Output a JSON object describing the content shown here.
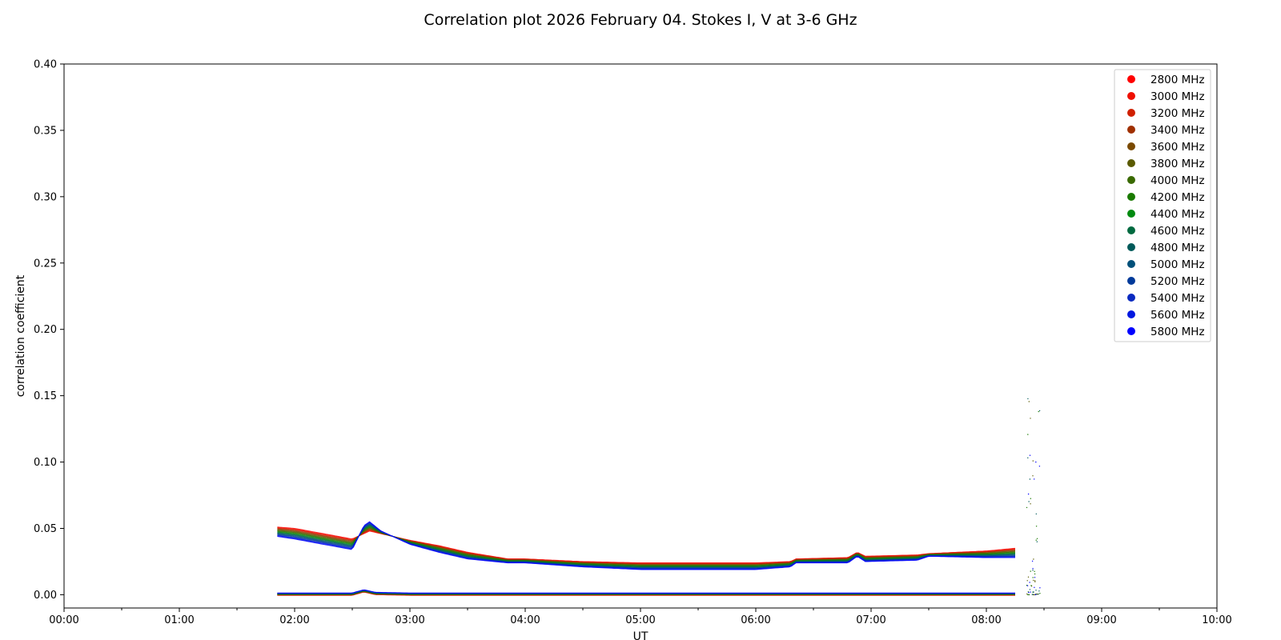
{
  "chart_data": {
    "type": "scatter",
    "title": "Correlation plot 2026 February 04. Stokes I, V at 3-6 GHz",
    "xlabel": "UT",
    "ylabel": "correlation coefficient",
    "xlim": [
      "00:00",
      "10:00"
    ],
    "ylim": [
      -0.01,
      0.4
    ],
    "x_ticks": [
      "00:00",
      "01:00",
      "02:00",
      "03:00",
      "04:00",
      "05:00",
      "06:00",
      "07:00",
      "08:00",
      "09:00",
      "10:00"
    ],
    "y_ticks": [
      "0.00",
      "0.05",
      "0.10",
      "0.15",
      "0.20",
      "0.25",
      "0.30",
      "0.35",
      "0.40"
    ],
    "grid": false,
    "legend_position": "top-right",
    "x_unit": "UT hours",
    "series": [
      {
        "name": "2800 MHz",
        "color": "#ff0000"
      },
      {
        "name": "3000 MHz",
        "color": "#ef1000"
      },
      {
        "name": "3200 MHz",
        "color": "#d02000"
      },
      {
        "name": "3400 MHz",
        "color": "#a03000"
      },
      {
        "name": "3600 MHz",
        "color": "#7a4a00"
      },
      {
        "name": "3800 MHz",
        "color": "#5a5a00"
      },
      {
        "name": "4000 MHz",
        "color": "#3a6a00"
      },
      {
        "name": "4200 MHz",
        "color": "#1a7a00"
      },
      {
        "name": "4400 MHz",
        "color": "#008a10"
      },
      {
        "name": "4600 MHz",
        "color": "#006a40"
      },
      {
        "name": "4800 MHz",
        "color": "#005a5a"
      },
      {
        "name": "5000 MHz",
        "color": "#00507a"
      },
      {
        "name": "5200 MHz",
        "color": "#003a9a"
      },
      {
        "name": "5400 MHz",
        "color": "#0a2ac0"
      },
      {
        "name": "5600 MHz",
        "color": "#0018e0"
      },
      {
        "name": "5800 MHz",
        "color": "#0000ff"
      }
    ],
    "stokes_i_profile": {
      "x": [
        1.85,
        2.0,
        2.25,
        2.5,
        2.6,
        2.65,
        2.75,
        3.0,
        3.25,
        3.5,
        3.85,
        4.0,
        4.5,
        5.0,
        5.5,
        6.0,
        6.3,
        6.35,
        6.8,
        6.88,
        6.95,
        7.4,
        7.5,
        8.0,
        8.25
      ],
      "low_freq": [
        0.051,
        0.05,
        0.046,
        0.042,
        0.046,
        0.048,
        0.046,
        0.041,
        0.037,
        0.032,
        0.027,
        0.027,
        0.025,
        0.024,
        0.024,
        0.024,
        0.025,
        0.027,
        0.028,
        0.032,
        0.029,
        0.03,
        0.031,
        0.033,
        0.035
      ],
      "high_freq": [
        0.044,
        0.042,
        0.038,
        0.034,
        0.052,
        0.055,
        0.048,
        0.038,
        0.032,
        0.027,
        0.024,
        0.024,
        0.021,
        0.019,
        0.019,
        0.019,
        0.021,
        0.024,
        0.024,
        0.029,
        0.025,
        0.026,
        0.029,
        0.028,
        0.028
      ]
    },
    "stokes_v_profile": {
      "x": [
        1.85,
        2.5,
        2.6,
        2.7,
        3.0,
        8.25
      ],
      "y": [
        0.0005,
        0.0005,
        0.003,
        0.001,
        0.0005,
        0.0005
      ]
    },
    "stokes_v_range": [
      -0.002,
      0.003
    ],
    "scatter_tail_x": [
      8.35,
      8.47
    ],
    "scatter_tail_ymax": 0.152
  }
}
